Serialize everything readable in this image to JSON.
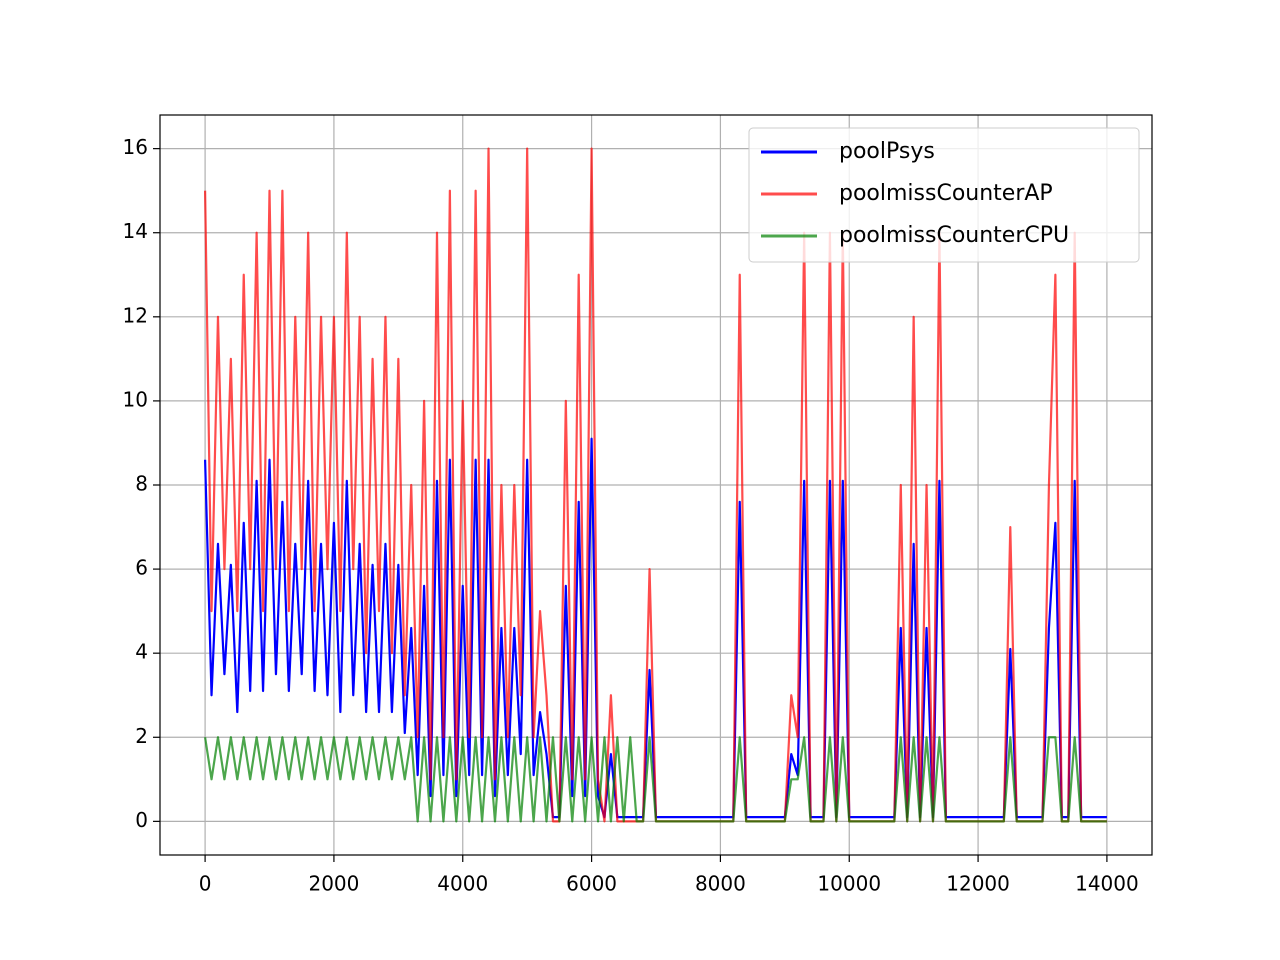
{
  "chart_data": {
    "type": "line",
    "x": [
      0,
      100,
      200,
      300,
      400,
      500,
      600,
      700,
      800,
      900,
      1000,
      1100,
      1200,
      1300,
      1400,
      1500,
      1600,
      1700,
      1800,
      1900,
      2000,
      2100,
      2200,
      2300,
      2400,
      2500,
      2600,
      2700,
      2800,
      2900,
      3000,
      3100,
      3200,
      3300,
      3400,
      3500,
      3600,
      3700,
      3800,
      3900,
      4000,
      4100,
      4200,
      4300,
      4400,
      4500,
      4600,
      4700,
      4800,
      4900,
      5000,
      5100,
      5200,
      5300,
      5400,
      5500,
      5600,
      5700,
      5800,
      5900,
      6000,
      6100,
      6200,
      6300,
      6400,
      6500,
      6600,
      6700,
      6800,
      6900,
      7000,
      7100,
      7200,
      7300,
      7400,
      7500,
      7600,
      7700,
      7800,
      7900,
      8000,
      8100,
      8200,
      8300,
      8400,
      8500,
      8600,
      8700,
      8800,
      8900,
      9000,
      9100,
      9200,
      9300,
      9400,
      9500,
      9600,
      9700,
      9800,
      9900,
      10000,
      10100,
      10200,
      10300,
      10400,
      10500,
      10600,
      10700,
      10800,
      10900,
      11000,
      11100,
      11200,
      11300,
      11400,
      11500,
      11600,
      11700,
      11800,
      11900,
      12000,
      12100,
      12200,
      12300,
      12400,
      12500,
      12600,
      12700,
      12800,
      12900,
      13000,
      13100,
      13200,
      13300,
      13400,
      13500,
      13600,
      13700,
      13800,
      13900,
      14000
    ],
    "series": [
      {
        "name": "poolPsys",
        "color": "#0000ff",
        "opacity": 1,
        "values": [
          8.6,
          3,
          6.6,
          3.5,
          6.1,
          2.6,
          7.1,
          3.1,
          8.1,
          3.1,
          8.6,
          3.5,
          7.6,
          3.1,
          6.6,
          3.5,
          8.1,
          3.1,
          6.6,
          3,
          7.1,
          2.6,
          8.1,
          3,
          6.6,
          2.6,
          6.1,
          2.6,
          6.6,
          2.6,
          6.1,
          2.1,
          4.6,
          1.1,
          5.6,
          0.6,
          8.1,
          1.1,
          8.6,
          0.6,
          5.6,
          1.1,
          8.6,
          1.1,
          8.6,
          0.6,
          4.6,
          1.1,
          4.6,
          1.6,
          8.6,
          1.1,
          2.6,
          1.6,
          0.1,
          0.1,
          5.6,
          0.6,
          7.6,
          0.6,
          9.1,
          0.6,
          0.1,
          1.6,
          0.1,
          0.1,
          0.1,
          0.1,
          0.1,
          3.6,
          0.1,
          0.1,
          0.1,
          0.1,
          0.1,
          0.1,
          0.1,
          0.1,
          0.1,
          0.1,
          0.1,
          0.1,
          0.1,
          7.6,
          0.1,
          0.1,
          0.1,
          0.1,
          0.1,
          0.1,
          0.1,
          1.6,
          1.1,
          8.1,
          0.1,
          0.1,
          0.1,
          8.1,
          0.1,
          8.1,
          0.1,
          0.1,
          0.1,
          0.1,
          0.1,
          0.1,
          0.1,
          0.1,
          4.6,
          0.1,
          6.6,
          0.1,
          4.6,
          0.1,
          8.1,
          0.1,
          0.1,
          0.1,
          0.1,
          0.1,
          0.1,
          0.1,
          0.1,
          0.1,
          0.1,
          4.1,
          0.1,
          0.1,
          0.1,
          0.1,
          0.1,
          4.6,
          7.1,
          0.1,
          0.1,
          8.1,
          0.1,
          0.1,
          0.1,
          0.1,
          0.1
        ]
      },
      {
        "name": "poolmissCounterAP",
        "color": "#ff0000",
        "opacity": 0.7,
        "values": [
          15,
          5,
          12,
          6,
          11,
          5,
          13,
          6,
          14,
          5,
          15,
          6,
          15,
          5,
          12,
          6,
          14,
          5,
          12,
          6,
          12,
          5,
          14,
          6,
          12,
          4,
          11,
          5,
          12,
          4,
          11,
          3,
          8,
          2,
          10,
          1,
          14,
          2,
          15,
          1,
          10,
          2,
          15,
          2,
          16,
          1,
          8,
          2,
          8,
          3,
          16,
          2,
          5,
          3,
          0,
          0,
          10,
          1,
          13,
          1,
          16,
          1,
          0,
          3,
          0,
          0,
          0,
          0,
          0,
          6,
          0,
          0,
          0,
          0,
          0,
          0,
          0,
          0,
          0,
          0,
          0,
          0,
          0,
          13,
          0,
          0,
          0,
          0,
          0,
          0,
          0,
          3,
          2,
          14,
          0,
          0,
          0,
          14,
          0,
          14,
          0,
          0,
          0,
          0,
          0,
          0,
          0,
          0,
          8,
          0,
          12,
          0,
          8,
          0,
          14,
          0,
          0,
          0,
          0,
          0,
          0,
          0,
          0,
          0,
          0,
          7,
          0,
          0,
          0,
          0,
          0,
          8,
          13,
          0,
          0,
          14,
          0,
          0,
          0,
          0,
          0
        ]
      },
      {
        "name": "poolmissCounterCPU",
        "color": "#008000",
        "opacity": 0.7,
        "values": [
          2,
          1,
          2,
          1,
          2,
          1,
          2,
          1,
          2,
          1,
          2,
          1,
          2,
          1,
          2,
          1,
          2,
          1,
          2,
          1,
          2,
          1,
          2,
          1,
          2,
          1,
          2,
          1,
          2,
          1,
          2,
          1,
          2,
          0,
          2,
          0,
          2,
          0,
          2,
          0,
          2,
          0,
          2,
          0,
          2,
          0,
          2,
          0,
          2,
          0,
          2,
          0,
          2,
          0,
          2,
          0,
          2,
          0,
          2,
          0,
          2,
          0,
          2,
          0,
          2,
          0,
          2,
          0,
          0,
          2,
          0,
          0,
          0,
          0,
          0,
          0,
          0,
          0,
          0,
          0,
          0,
          0,
          0,
          2,
          0,
          0,
          0,
          0,
          0,
          0,
          0,
          1,
          1,
          2,
          0,
          0,
          0,
          2,
          0,
          2,
          0,
          0,
          0,
          0,
          0,
          0,
          0,
          0,
          2,
          0,
          2,
          0,
          2,
          0,
          2,
          0,
          0,
          0,
          0,
          0,
          0,
          0,
          0,
          0,
          0,
          2,
          0,
          0,
          0,
          0,
          0,
          2,
          2,
          0,
          0,
          2,
          0,
          0,
          0,
          0,
          0
        ]
      }
    ],
    "xlim": [
      -700,
      14700
    ],
    "ylim": [
      -0.8,
      16.8
    ],
    "xticks": [
      0,
      2000,
      4000,
      6000,
      8000,
      10000,
      12000,
      14000
    ],
    "yticks": [
      0,
      2,
      4,
      6,
      8,
      10,
      12,
      14,
      16
    ],
    "grid": true,
    "legend": "upper right"
  }
}
